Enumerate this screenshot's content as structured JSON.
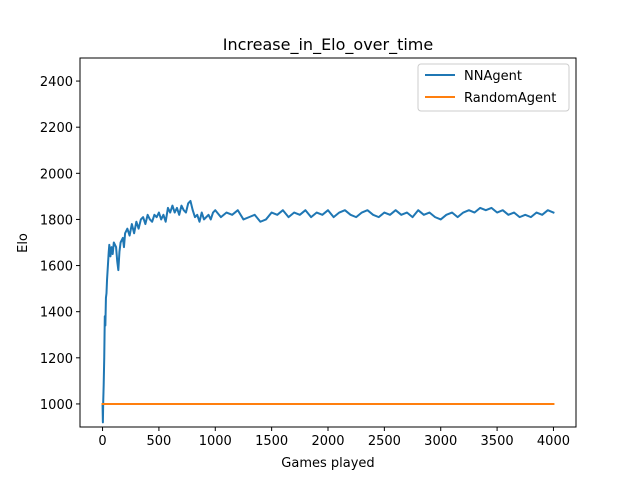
{
  "chart_data": {
    "type": "line",
    "title": "Increase_in_Elo_over_time",
    "xlabel": "Games played",
    "ylabel": "Elo",
    "xlim": [
      -200,
      4200
    ],
    "ylim": [
      900,
      2500
    ],
    "xticks": [
      "0",
      "500",
      "1000",
      "1500",
      "2000",
      "2500",
      "3000",
      "3500",
      "4000"
    ],
    "yticks": [
      "1000",
      "1200",
      "1400",
      "1600",
      "1800",
      "2000",
      "2200",
      "2400"
    ],
    "grid": false,
    "legend_position": "upper right",
    "series": [
      {
        "name": "NNAgent",
        "color": "#1f77b4",
        "x": [
          0,
          3,
          6,
          10,
          15,
          20,
          25,
          30,
          35,
          40,
          45,
          50,
          55,
          60,
          70,
          80,
          90,
          100,
          110,
          120,
          130,
          140,
          150,
          160,
          170,
          180,
          190,
          200,
          220,
          240,
          260,
          280,
          300,
          320,
          340,
          360,
          380,
          400,
          420,
          440,
          460,
          480,
          500,
          520,
          540,
          560,
          580,
          600,
          620,
          640,
          660,
          680,
          700,
          720,
          740,
          760,
          780,
          800,
          820,
          840,
          860,
          880,
          900,
          920,
          940,
          960,
          980,
          1000,
          1050,
          1100,
          1150,
          1200,
          1250,
          1300,
          1350,
          1400,
          1450,
          1500,
          1550,
          1600,
          1650,
          1700,
          1750,
          1800,
          1850,
          1900,
          1950,
          2000,
          2050,
          2100,
          2150,
          2200,
          2250,
          2300,
          2350,
          2400,
          2450,
          2500,
          2550,
          2600,
          2650,
          2700,
          2750,
          2800,
          2850,
          2900,
          2950,
          3000,
          3050,
          3100,
          3150,
          3200,
          3250,
          3300,
          3350,
          3400,
          3450,
          3500,
          3550,
          3600,
          3650,
          3700,
          3750,
          3800,
          3850,
          3900,
          3950,
          4000
        ],
        "values": [
          1000,
          920,
          1010,
          1080,
          1200,
          1380,
          1340,
          1460,
          1480,
          1540,
          1580,
          1620,
          1660,
          1690,
          1640,
          1680,
          1650,
          1700,
          1690,
          1680,
          1620,
          1580,
          1660,
          1700,
          1710,
          1720,
          1680,
          1740,
          1760,
          1730,
          1780,
          1740,
          1790,
          1760,
          1800,
          1810,
          1780,
          1820,
          1800,
          1790,
          1820,
          1810,
          1830,
          1800,
          1820,
          1790,
          1850,
          1830,
          1860,
          1830,
          1850,
          1820,
          1860,
          1840,
          1830,
          1870,
          1880,
          1840,
          1810,
          1820,
          1790,
          1830,
          1800,
          1810,
          1820,
          1800,
          1830,
          1840,
          1810,
          1830,
          1820,
          1840,
          1800,
          1810,
          1820,
          1790,
          1800,
          1830,
          1820,
          1840,
          1810,
          1830,
          1820,
          1840,
          1810,
          1830,
          1820,
          1840,
          1810,
          1830,
          1840,
          1820,
          1810,
          1830,
          1840,
          1820,
          1810,
          1830,
          1820,
          1840,
          1820,
          1830,
          1810,
          1840,
          1820,
          1830,
          1810,
          1800,
          1820,
          1830,
          1810,
          1830,
          1840,
          1830,
          1850,
          1840,
          1850,
          1830,
          1840,
          1820,
          1830,
          1810,
          1820,
          1810,
          1830,
          1820,
          1840,
          1830
        ]
      },
      {
        "name": "RandomAgent",
        "color": "#ff7f0e",
        "x": [
          0,
          4000
        ],
        "values": [
          1000,
          1000
        ]
      }
    ]
  }
}
